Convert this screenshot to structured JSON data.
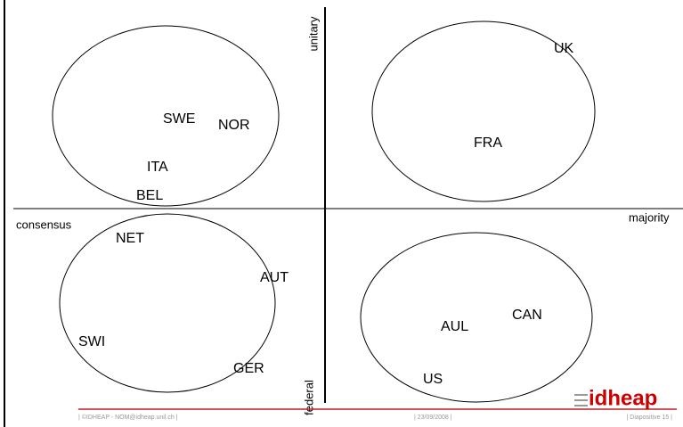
{
  "axes": {
    "top": "unitary",
    "bottom": "federal",
    "left": "consensus",
    "right": "majority"
  },
  "quadrants": [
    {
      "labels": [
        "SWE",
        "NOR",
        "ITA",
        "BEL"
      ]
    },
    {
      "labels": [
        "UK",
        "FRA"
      ]
    },
    {
      "labels": [
        "NET",
        "AUT",
        "SWI",
        "GER"
      ]
    },
    {
      "labels": [
        "AUL",
        "CAN",
        "US"
      ]
    }
  ],
  "footer": {
    "left": "| ©IDHEAP - NOM@idheap.unil.ch |",
    "center": "| 23/09/2008 |",
    "right": "| Diapositive 15 |",
    "logo": "idheap"
  }
}
